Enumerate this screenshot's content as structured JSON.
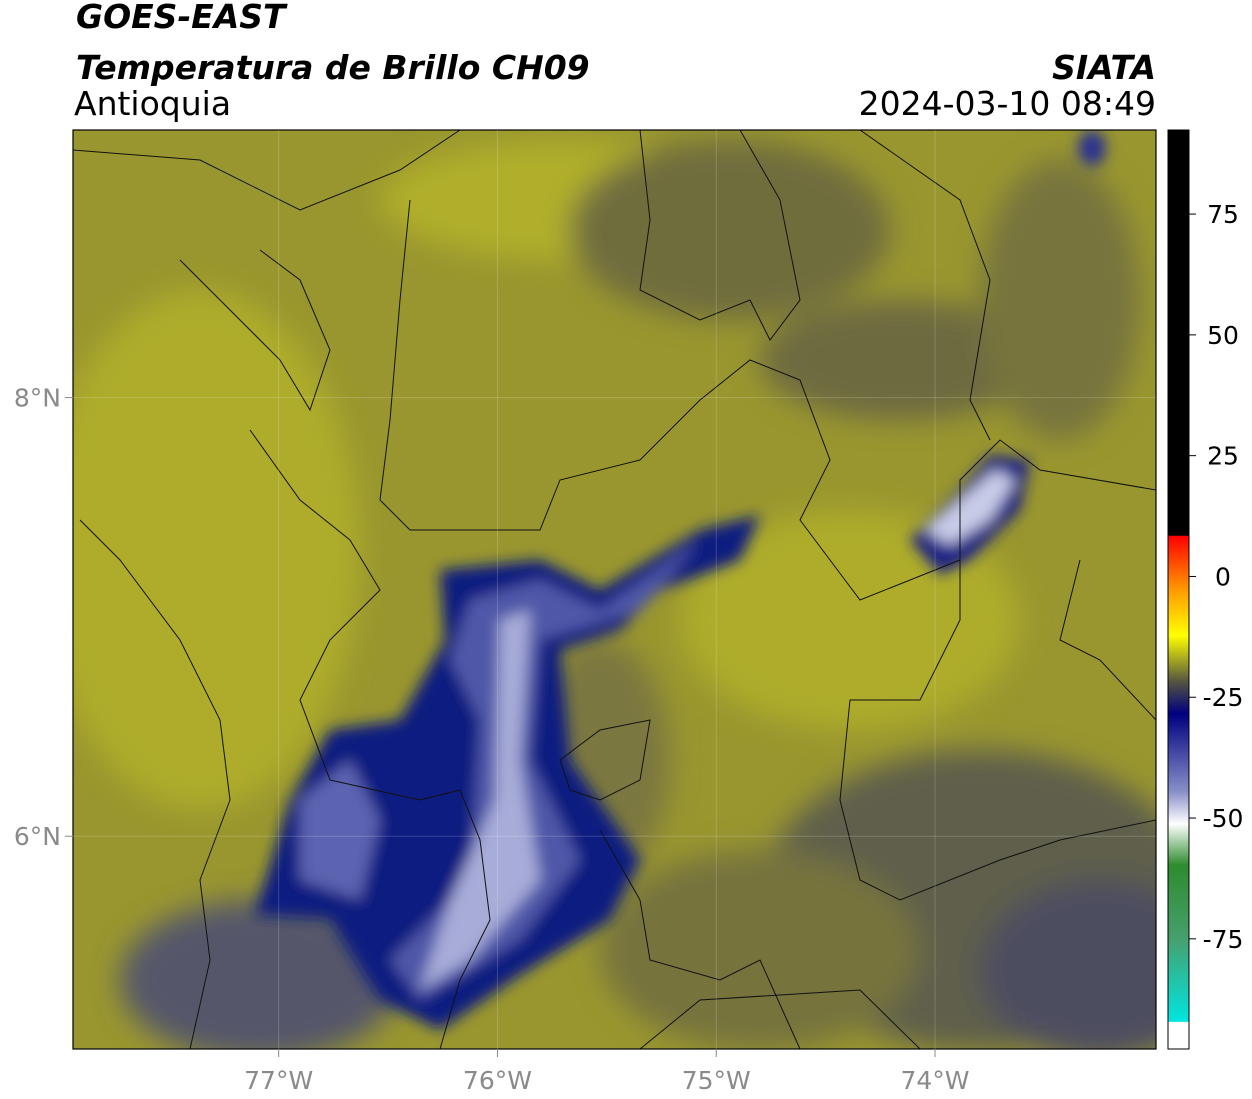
{
  "header": {
    "title": "GOES-EAST",
    "subtitle": "Temperatura de Brillo CH09",
    "region": "Antioquia",
    "source": "SIATA",
    "datetime": "2024-03-10 08:49"
  },
  "map": {
    "lonlim": [
      -77.94,
      -72.99
    ],
    "latlim": [
      5.03,
      9.22
    ],
    "lon_ticks": [
      {
        "value": -77,
        "label": "77°W"
      },
      {
        "value": -76,
        "label": "76°W"
      },
      {
        "value": -75,
        "label": "75°W"
      },
      {
        "value": -74,
        "label": "74°W"
      }
    ],
    "lat_ticks": [
      {
        "value": 8,
        "label": "8°N"
      },
      {
        "value": 6,
        "label": "6°N"
      }
    ]
  },
  "colorbar": {
    "lim": [
      -97.8,
      92.4
    ],
    "ticks": [
      75,
      50,
      25,
      0,
      -25,
      -50,
      -75
    ]
  }
}
